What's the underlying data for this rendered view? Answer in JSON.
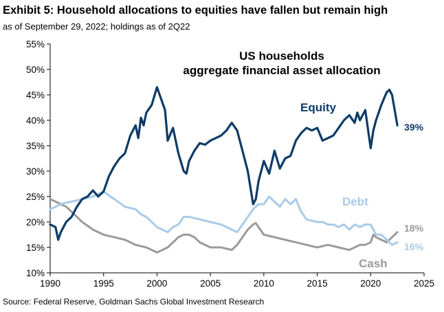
{
  "header": {
    "title": "Exhibit 5: Household allocations to equities have fallen but remain high",
    "subtitle": "as of September 29, 2022; holdings as of 2Q22"
  },
  "footer": {
    "source": "Source: Federal Reserve, Goldman Sachs Global Investment Research"
  },
  "chart_data": {
    "type": "line",
    "title": "US households aggregate financial asset allocation",
    "title_lines": [
      "US households",
      "aggregate financial asset allocation"
    ],
    "xlabel": "",
    "ylabel": "",
    "xlim": [
      1990,
      2025
    ],
    "ylim": [
      10,
      55
    ],
    "x_ticks": [
      1990,
      1995,
      2000,
      2005,
      2010,
      2015,
      2020,
      2025
    ],
    "y_ticks": [
      10,
      15,
      20,
      25,
      30,
      35,
      40,
      45,
      50,
      55
    ],
    "y_tick_labels": [
      "10%",
      "15%",
      "20%",
      "25%",
      "30%",
      "35%",
      "40%",
      "45%",
      "50%",
      "55%"
    ],
    "grid": false,
    "series": [
      {
        "name": "Equity",
        "color": "#0d3b66",
        "end_label": "39%",
        "x": [
          1990,
          1990.5,
          1990.75,
          1991,
          1991.5,
          1992,
          1992.5,
          1993,
          1993.5,
          1994,
          1994.5,
          1995,
          1995.5,
          1996,
          1996.5,
          1997,
          1997.5,
          1998,
          1998.25,
          1998.5,
          1998.75,
          1999,
          1999.5,
          2000,
          2000.25,
          2000.75,
          2001,
          2001.5,
          2002,
          2002.5,
          2002.75,
          2003,
          2003.5,
          2004,
          2004.5,
          2005,
          2005.5,
          2006,
          2006.5,
          2007,
          2007.5,
          2008,
          2008.5,
          2009,
          2009.25,
          2009.5,
          2010,
          2010.5,
          2011,
          2011.5,
          2012,
          2012.5,
          2013,
          2013.5,
          2014,
          2014.5,
          2015,
          2015.5,
          2016,
          2016.5,
          2017,
          2017.5,
          2018,
          2018.5,
          2018.75,
          2019,
          2019.5,
          2020,
          2020.25,
          2020.5,
          2021,
          2021.5,
          2021.75,
          2022,
          2022.5
        ],
        "values": [
          19.5,
          19,
          16.5,
          18,
          20,
          21,
          23,
          24.5,
          25,
          26.2,
          25,
          26,
          29,
          31,
          32.5,
          33.5,
          37,
          39,
          36.5,
          40.5,
          39,
          41.5,
          43,
          46.5,
          45,
          42,
          36,
          38.5,
          33.5,
          30,
          29.5,
          32,
          34,
          35.5,
          35.2,
          36,
          36.5,
          37,
          38,
          39.5,
          38,
          34,
          30,
          23.5,
          24.5,
          28,
          32,
          29.5,
          34,
          30.5,
          32.5,
          33,
          36,
          37.5,
          38.5,
          38,
          38.5,
          36,
          36.5,
          37,
          38.5,
          40,
          41,
          39.5,
          41.5,
          40,
          42,
          34.5,
          38,
          40,
          43,
          45.5,
          46,
          45,
          39
        ]
      },
      {
        "name": "Debt",
        "color": "#a9cbe8",
        "end_label": "16%",
        "x": [
          1990,
          1990.5,
          1991,
          1991.5,
          1992,
          1993,
          1994,
          1994.5,
          1995,
          1995.5,
          1996,
          1997,
          1998,
          1998.5,
          1999,
          2000,
          2000.5,
          2001,
          2001.5,
          2002,
          2002.5,
          2003,
          2004,
          2005,
          2006,
          2006.5,
          2007,
          2007.5,
          2008,
          2008.5,
          2009,
          2009.5,
          2010,
          2010.5,
          2011,
          2011.5,
          2012,
          2012.5,
          2013,
          2013.5,
          2014,
          2015,
          2015.5,
          2016,
          2016.5,
          2017,
          2017.5,
          2018,
          2018.5,
          2019,
          2019.5,
          2020,
          2020.5,
          2021,
          2021.5,
          2022,
          2022.5
        ],
        "values": [
          22.5,
          23,
          23.5,
          23.8,
          24,
          24.5,
          25,
          25.5,
          26,
          25.2,
          24.5,
          23,
          22.5,
          21.5,
          21,
          19,
          18.5,
          18,
          19,
          19.5,
          21,
          21,
          20.5,
          20,
          19.5,
          19,
          18.5,
          18,
          19.5,
          21,
          22.5,
          23.5,
          23.5,
          25,
          24,
          23,
          24.5,
          23.5,
          24.5,
          22,
          20.5,
          20,
          20,
          19.5,
          19.5,
          19,
          19.5,
          18.5,
          19.5,
          19,
          19.5,
          19.5,
          17.5,
          17.5,
          16.5,
          15.5,
          16
        ]
      },
      {
        "name": "Cash",
        "color": "#9a9a9a",
        "end_label": "18%",
        "x": [
          1990,
          1990.5,
          1991,
          1991.5,
          1992,
          1993,
          1994,
          1995,
          1996,
          1997,
          1998,
          1999,
          1999.5,
          2000,
          2000.5,
          2001,
          2001.5,
          2002,
          2002.5,
          2003,
          2003.5,
          2004,
          2005,
          2006,
          2007,
          2007.5,
          2008,
          2008.5,
          2009,
          2009.25,
          2009.5,
          2010,
          2011,
          2012,
          2013,
          2014,
          2015,
          2016,
          2017,
          2018,
          2018.5,
          2019,
          2019.5,
          2020,
          2020.25,
          2020.5,
          2021,
          2021.5,
          2022,
          2022.5
        ],
        "values": [
          24.5,
          24,
          23.5,
          23,
          22,
          20,
          18.5,
          17.5,
          17,
          16.5,
          15.5,
          15,
          14.5,
          14,
          14.5,
          15,
          16,
          17,
          17.5,
          17.5,
          17,
          16,
          15,
          15,
          14.5,
          15.5,
          17,
          18.5,
          19.5,
          19.8,
          19,
          17.5,
          17,
          16.5,
          16,
          15.5,
          15,
          15.5,
          15,
          14.5,
          15,
          15.5,
          15.5,
          16,
          17.5,
          17,
          16.5,
          16,
          17,
          18
        ]
      }
    ]
  }
}
